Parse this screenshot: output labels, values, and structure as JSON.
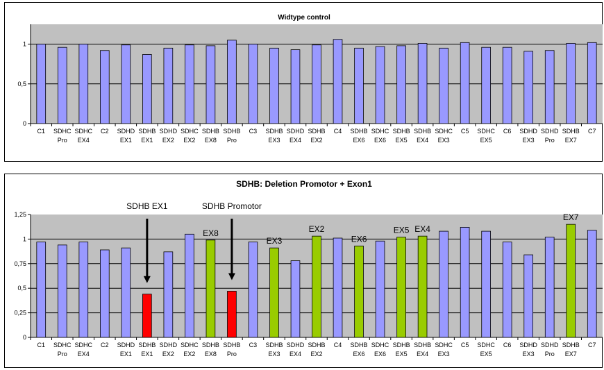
{
  "chart_data": [
    {
      "type": "bar",
      "title": "Widtype control",
      "categories": [
        [
          "C1",
          ""
        ],
        [
          "SDHC",
          "Pro"
        ],
        [
          "SDHC",
          "EX4"
        ],
        [
          "C2",
          ""
        ],
        [
          "SDHD",
          "EX1"
        ],
        [
          "SDHB",
          "EX1"
        ],
        [
          "SDHD",
          "EX2"
        ],
        [
          "SDHC",
          "EX2"
        ],
        [
          "SDHB",
          "EX8"
        ],
        [
          "SDHB",
          "Pro"
        ],
        [
          "C3",
          ""
        ],
        [
          "SDHB",
          "EX3"
        ],
        [
          "SDHD",
          "EX4"
        ],
        [
          "SDHB",
          "EX2"
        ],
        [
          "C4",
          ""
        ],
        [
          "SDHB",
          "EX6"
        ],
        [
          "SDHC",
          "EX6"
        ],
        [
          "SDHB",
          "EX5"
        ],
        [
          "SDHB",
          "EX4"
        ],
        [
          "SDHC",
          "EX3"
        ],
        [
          "C5",
          ""
        ],
        [
          "SDHC",
          "EX5"
        ],
        [
          "C6",
          ""
        ],
        [
          "SDHD",
          "EX3"
        ],
        [
          "SDHD",
          "Pro"
        ],
        [
          "SDHB",
          "EX7"
        ],
        [
          "C7",
          ""
        ]
      ],
      "values": [
        1.0,
        0.96,
        1.0,
        0.92,
        0.99,
        0.87,
        0.95,
        0.99,
        0.98,
        1.05,
        1.0,
        0.95,
        0.93,
        0.99,
        1.06,
        0.95,
        0.97,
        0.98,
        1.01,
        0.95,
        1.02,
        0.96,
        0.96,
        0.91,
        0.92,
        1.01,
        1.02
      ],
      "colors": [
        "blue",
        "blue",
        "blue",
        "blue",
        "blue",
        "blue",
        "blue",
        "blue",
        "blue",
        "blue",
        "blue",
        "blue",
        "blue",
        "blue",
        "blue",
        "blue",
        "blue",
        "blue",
        "blue",
        "blue",
        "blue",
        "blue",
        "blue",
        "blue",
        "blue",
        "blue",
        "blue"
      ],
      "yticks": [
        "0",
        "0,5",
        "1"
      ],
      "ylim": [
        0,
        1.25
      ],
      "grid": true,
      "annotations": []
    },
    {
      "type": "bar",
      "title": "SDHB:  Deletion Promotor + Exon1",
      "categories": [
        [
          "C1",
          ""
        ],
        [
          "SDHC",
          "Pro"
        ],
        [
          "SDHC",
          "EX4"
        ],
        [
          "C2",
          ""
        ],
        [
          "SDHD",
          "EX1"
        ],
        [
          "SDHB",
          "EX1"
        ],
        [
          "SDHD",
          "EX2"
        ],
        [
          "SDHC",
          "EX2"
        ],
        [
          "SDHB",
          "EX8"
        ],
        [
          "SDHB",
          "Pro"
        ],
        [
          "C3",
          ""
        ],
        [
          "SDHB",
          "EX3"
        ],
        [
          "SDHD",
          "EX4"
        ],
        [
          "SDHB",
          "EX2"
        ],
        [
          "C4",
          ""
        ],
        [
          "SDHB",
          "EX6"
        ],
        [
          "SDHC",
          "EX6"
        ],
        [
          "SDHB",
          "EX5"
        ],
        [
          "SDHB",
          "EX4"
        ],
        [
          "SDHC",
          "EX3"
        ],
        [
          "C5",
          ""
        ],
        [
          "SDHC",
          "EX5"
        ],
        [
          "C6",
          ""
        ],
        [
          "SDHD",
          "EX3"
        ],
        [
          "SDHD",
          "Pro"
        ],
        [
          "SDHB",
          "EX7"
        ],
        [
          "C7",
          ""
        ]
      ],
      "values": [
        0.97,
        0.94,
        0.97,
        0.89,
        0.91,
        0.44,
        0.87,
        1.05,
        0.99,
        0.47,
        0.97,
        0.91,
        0.78,
        1.03,
        1.01,
        0.93,
        0.98,
        1.02,
        1.03,
        1.08,
        1.12,
        1.08,
        0.97,
        0.84,
        1.02,
        1.15,
        1.09
      ],
      "colors": [
        "blue",
        "blue",
        "blue",
        "blue",
        "blue",
        "red",
        "blue",
        "blue",
        "green",
        "red",
        "blue",
        "green",
        "blue",
        "green",
        "blue",
        "green",
        "blue",
        "green",
        "green",
        "blue",
        "blue",
        "blue",
        "blue",
        "blue",
        "blue",
        "green",
        "blue"
      ],
      "yticks": [
        "0",
        "0,25",
        "0,5",
        "0,75",
        "1",
        "1,25"
      ],
      "ylim": [
        0,
        1.25
      ],
      "grid": true,
      "annotations": [
        {
          "text": "SDHB EX1",
          "index": 5,
          "arrow": true,
          "row": "high"
        },
        {
          "text": "SDHB Promotor",
          "index": 9,
          "arrow": true,
          "row": "high"
        },
        {
          "text": "EX8",
          "index": 8,
          "arrow": false,
          "row": "bar"
        },
        {
          "text": "EX3",
          "index": 11,
          "arrow": false,
          "row": "bar"
        },
        {
          "text": "EX2",
          "index": 13,
          "arrow": false,
          "row": "bar"
        },
        {
          "text": "EX6",
          "index": 15,
          "arrow": false,
          "row": "bar"
        },
        {
          "text": "EX5",
          "index": 17,
          "arrow": false,
          "row": "bar"
        },
        {
          "text": "EX4",
          "index": 18,
          "arrow": false,
          "row": "bar"
        },
        {
          "text": "EX7",
          "index": 25,
          "arrow": false,
          "row": "bar"
        }
      ]
    }
  ],
  "colors": {
    "blue": "#9999ff",
    "red": "#ff0000",
    "green": "#99cc00",
    "plot_bg": "#c0c0c0"
  }
}
